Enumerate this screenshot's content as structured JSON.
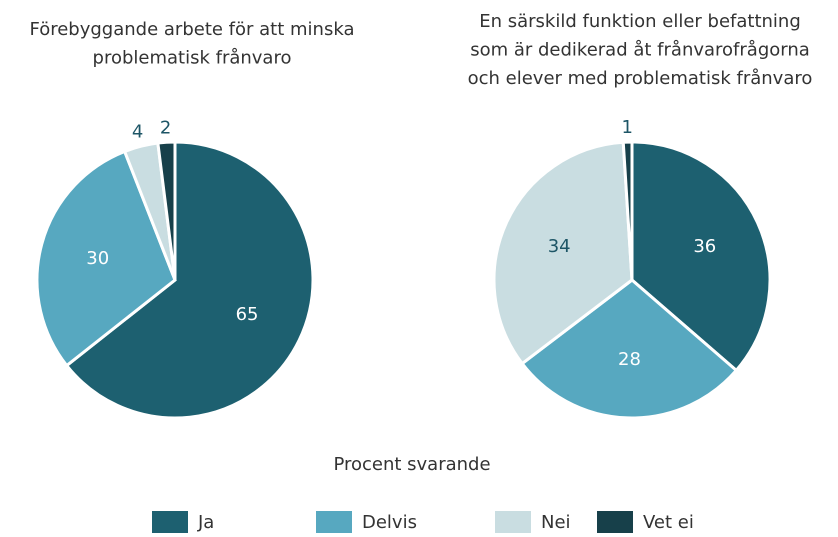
{
  "chart_data": [
    {
      "type": "pie",
      "title": [
        "Förebyggande arbete för att minska",
        "problematisk frånvaro"
      ],
      "categories": [
        "Ja",
        "Delvis",
        "Nei",
        "Vet ei"
      ],
      "values": [
        65,
        30,
        4,
        2
      ],
      "colors": [
        "#1d6070",
        "#57a8c0",
        "#c9dde1",
        "#17404a"
      ]
    },
    {
      "type": "pie",
      "title": [
        "En särskild funktion eller befattning",
        "som är dedikerad åt frånvarofrågorna",
        "och elever med problematisk frånvaro"
      ],
      "categories": [
        "Ja",
        "Delvis",
        "Nei",
        "Vet ei"
      ],
      "values": [
        36,
        28,
        34,
        1
      ],
      "colors": [
        "#1d6070",
        "#57a8c0",
        "#c9dde1",
        "#17404a"
      ]
    }
  ],
  "caption": "Procent svarande"
}
